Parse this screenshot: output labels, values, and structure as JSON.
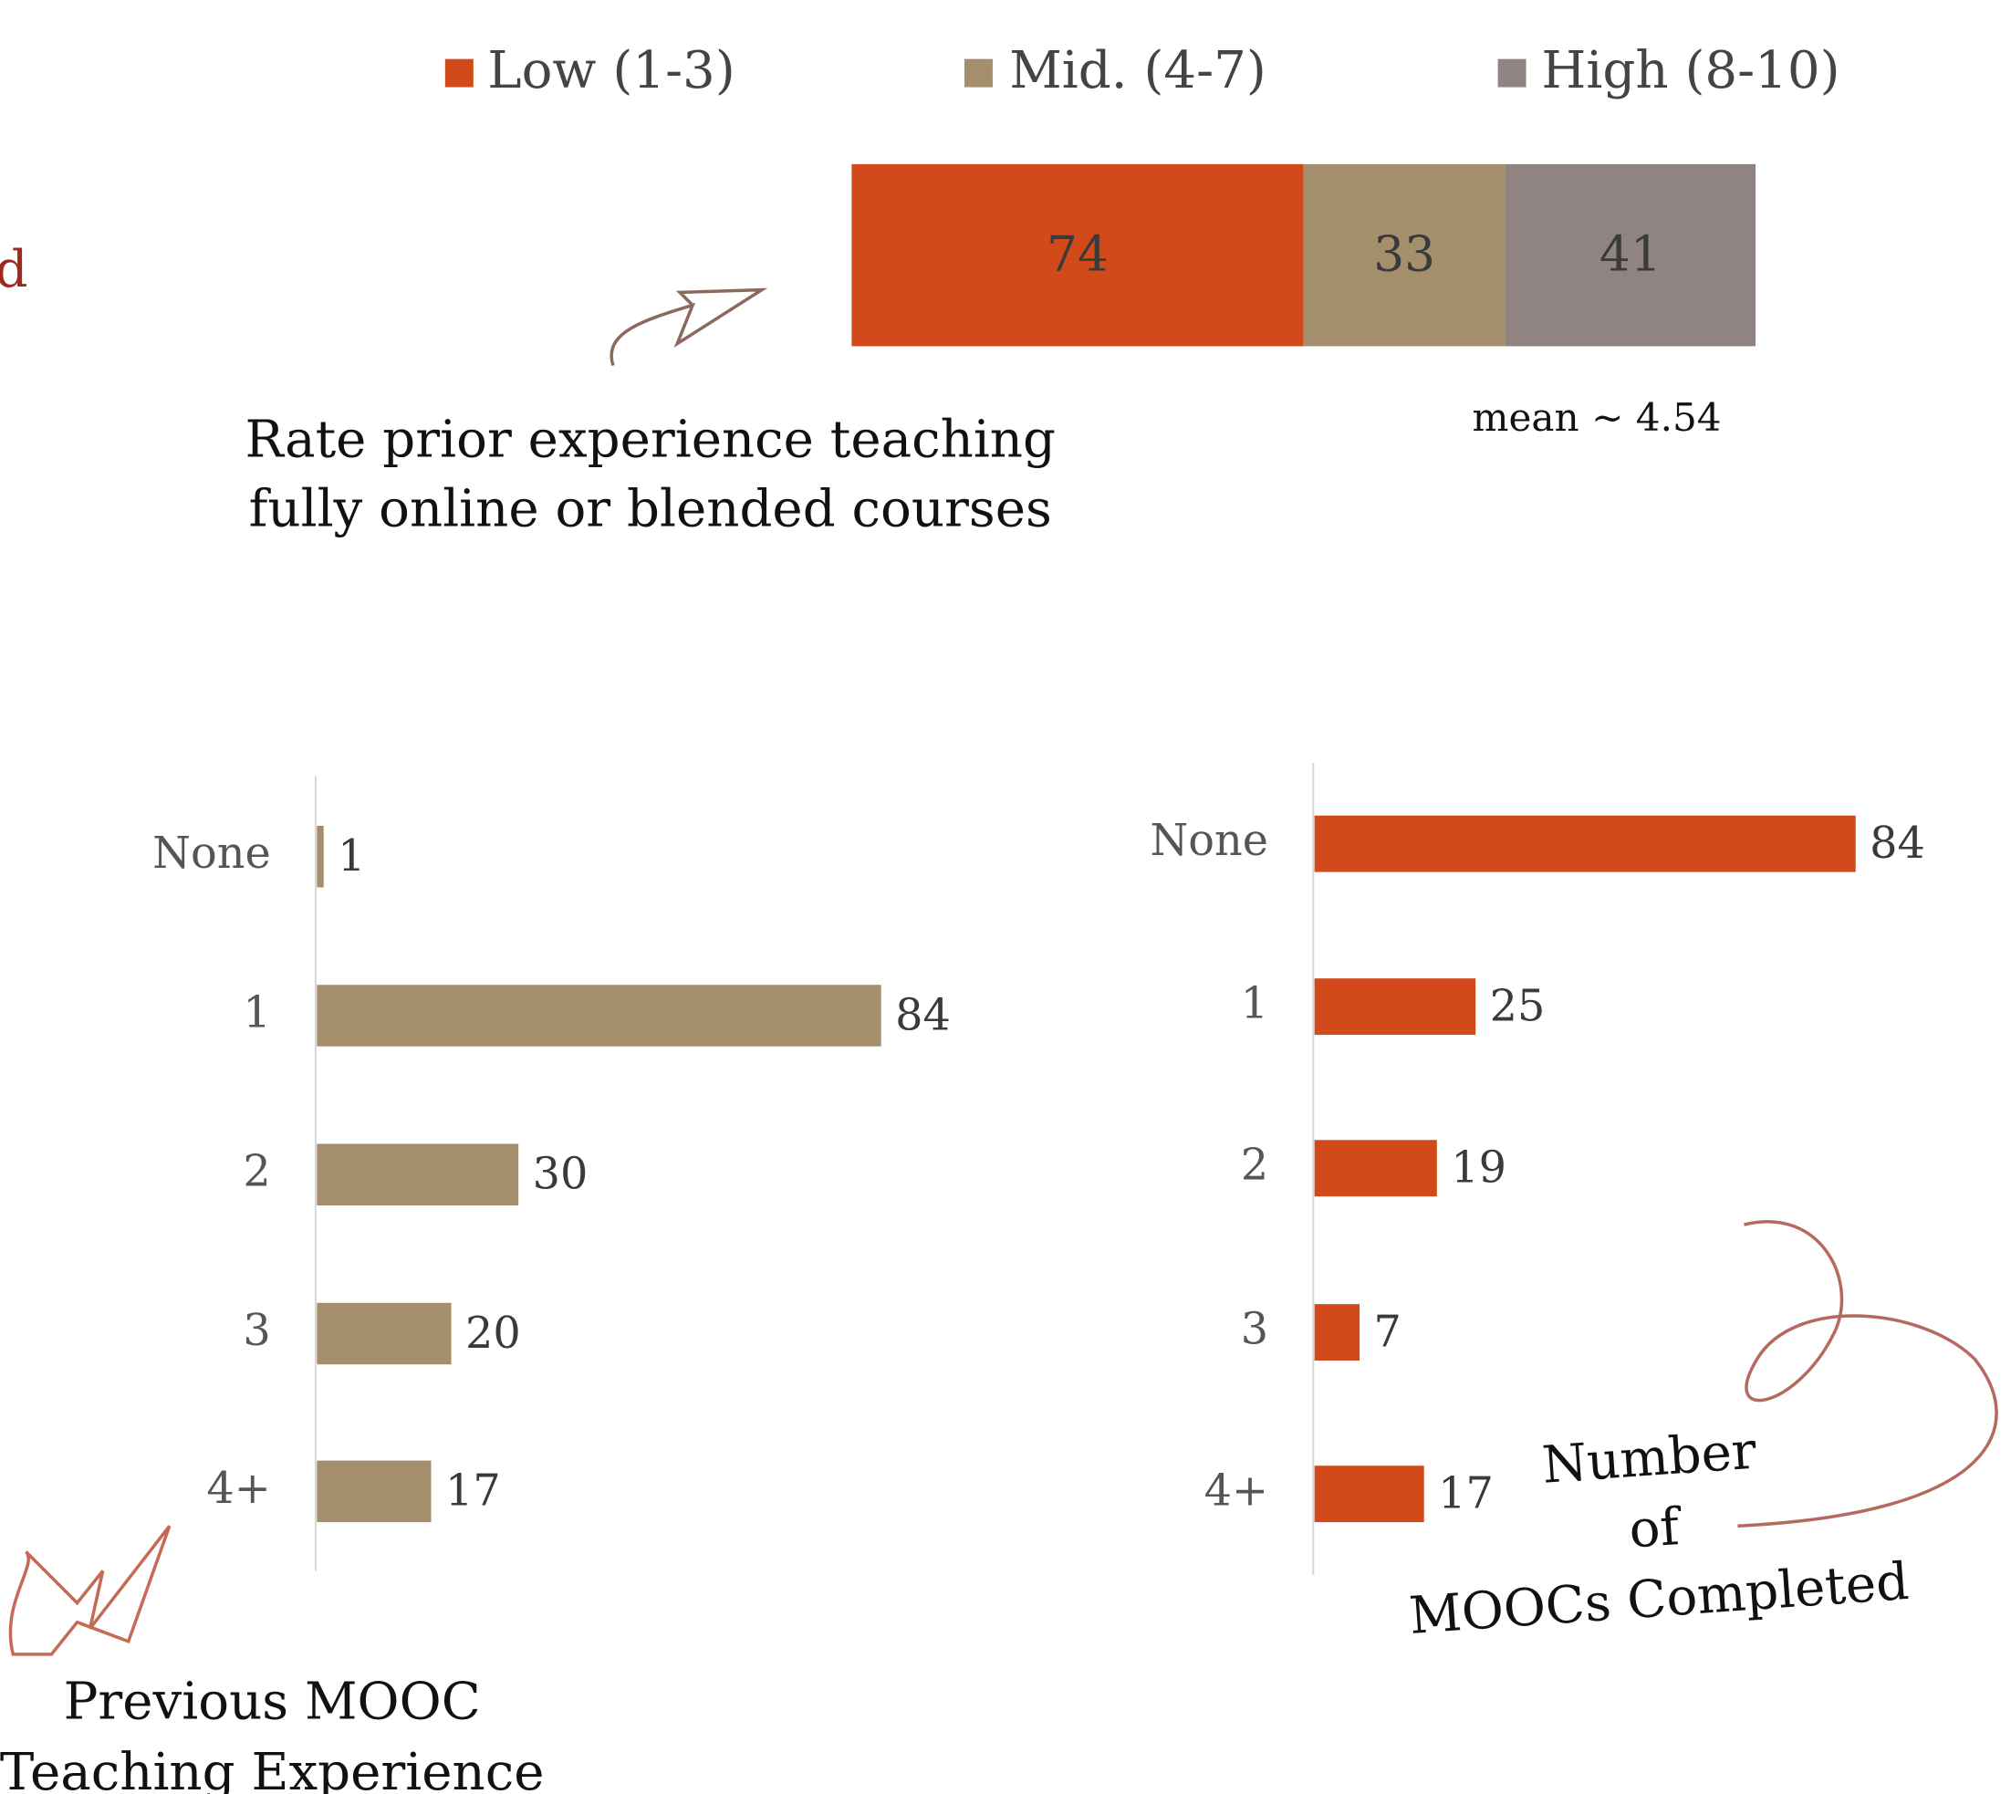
{
  "edge_text": "d",
  "chart_data": [
    {
      "type": "stacked_bar",
      "title": [
        "Rate prior experience teaching",
        "fully online or blended courses"
      ],
      "annotation": "mean ~ 4.54",
      "series": [
        {
          "name": "Low (1-3)",
          "color": "#d24a1a",
          "values": [
            74
          ]
        },
        {
          "name": "Mid. (4-7)",
          "color": "#a48e6b",
          "values": [
            33
          ]
        },
        {
          "name": "High (8-10)",
          "color": "#8f8482",
          "values": [
            41
          ]
        }
      ]
    },
    {
      "type": "hbar",
      "title": [
        "Previous MOOC",
        "Teaching Experience"
      ],
      "categories": [
        "None",
        "1",
        "2",
        "3",
        "4+"
      ],
      "values": [
        1,
        84,
        30,
        20,
        17
      ],
      "color": "#a48e6b"
    },
    {
      "type": "hbar",
      "title": [
        "Number",
        "of",
        "MOOCs Completed"
      ],
      "categories": [
        "None",
        "1",
        "2",
        "3",
        "4+"
      ],
      "values": [
        84,
        25,
        19,
        7,
        17
      ],
      "color": "#d24a1a"
    }
  ]
}
